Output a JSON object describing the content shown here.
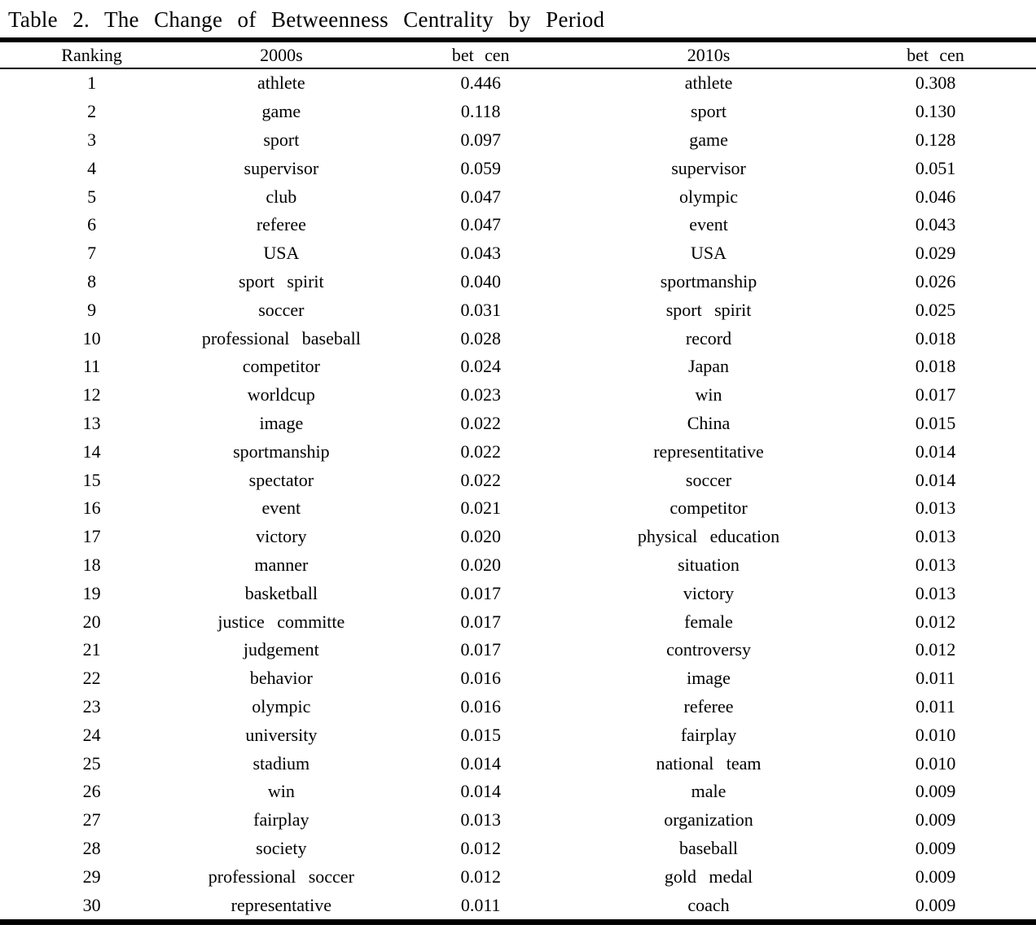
{
  "title": "Table 2. The Change of Betweenness Centrality by Period",
  "colors": {
    "text": "#000000",
    "background": "#ffffff",
    "rule": "#000000"
  },
  "table": {
    "headers": [
      "Ranking",
      "2000s",
      "bet cen",
      "2010s",
      "bet cen"
    ],
    "rows": [
      {
        "ranking": "1",
        "term_2000s": "athlete",
        "bet_cen_2000s": "0.446",
        "term_2010s": "athlete",
        "bet_cen_2010s": "0.308"
      },
      {
        "ranking": "2",
        "term_2000s": "game",
        "bet_cen_2000s": "0.118",
        "term_2010s": "sport",
        "bet_cen_2010s": "0.130"
      },
      {
        "ranking": "3",
        "term_2000s": "sport",
        "bet_cen_2000s": "0.097",
        "term_2010s": "game",
        "bet_cen_2010s": "0.128"
      },
      {
        "ranking": "4",
        "term_2000s": "supervisor",
        "bet_cen_2000s": "0.059",
        "term_2010s": "supervisor",
        "bet_cen_2010s": "0.051"
      },
      {
        "ranking": "5",
        "term_2000s": "club",
        "bet_cen_2000s": "0.047",
        "term_2010s": "olympic",
        "bet_cen_2010s": "0.046"
      },
      {
        "ranking": "6",
        "term_2000s": "referee",
        "bet_cen_2000s": "0.047",
        "term_2010s": "event",
        "bet_cen_2010s": "0.043"
      },
      {
        "ranking": "7",
        "term_2000s": "USA",
        "bet_cen_2000s": "0.043",
        "term_2010s": "USA",
        "bet_cen_2010s": "0.029"
      },
      {
        "ranking": "8",
        "term_2000s": "sport spirit",
        "bet_cen_2000s": "0.040",
        "term_2010s": "sportmanship",
        "bet_cen_2010s": "0.026"
      },
      {
        "ranking": "9",
        "term_2000s": "soccer",
        "bet_cen_2000s": "0.031",
        "term_2010s": "sport spirit",
        "bet_cen_2010s": "0.025"
      },
      {
        "ranking": "10",
        "term_2000s": "professional baseball",
        "bet_cen_2000s": "0.028",
        "term_2010s": "record",
        "bet_cen_2010s": "0.018"
      },
      {
        "ranking": "11",
        "term_2000s": "competitor",
        "bet_cen_2000s": "0.024",
        "term_2010s": "Japan",
        "bet_cen_2010s": "0.018"
      },
      {
        "ranking": "12",
        "term_2000s": "worldcup",
        "bet_cen_2000s": "0.023",
        "term_2010s": "win",
        "bet_cen_2010s": "0.017"
      },
      {
        "ranking": "13",
        "term_2000s": "image",
        "bet_cen_2000s": "0.022",
        "term_2010s": "China",
        "bet_cen_2010s": "0.015"
      },
      {
        "ranking": "14",
        "term_2000s": "sportmanship",
        "bet_cen_2000s": "0.022",
        "term_2010s": "representitative",
        "bet_cen_2010s": "0.014"
      },
      {
        "ranking": "15",
        "term_2000s": "spectator",
        "bet_cen_2000s": "0.022",
        "term_2010s": "soccer",
        "bet_cen_2010s": "0.014"
      },
      {
        "ranking": "16",
        "term_2000s": "event",
        "bet_cen_2000s": "0.021",
        "term_2010s": "competitor",
        "bet_cen_2010s": "0.013"
      },
      {
        "ranking": "17",
        "term_2000s": "victory",
        "bet_cen_2000s": "0.020",
        "term_2010s": "physical education",
        "bet_cen_2010s": "0.013"
      },
      {
        "ranking": "18",
        "term_2000s": "manner",
        "bet_cen_2000s": "0.020",
        "term_2010s": "situation",
        "bet_cen_2010s": "0.013"
      },
      {
        "ranking": "19",
        "term_2000s": "basketball",
        "bet_cen_2000s": "0.017",
        "term_2010s": "victory",
        "bet_cen_2010s": "0.013"
      },
      {
        "ranking": "20",
        "term_2000s": "justice committe",
        "bet_cen_2000s": "0.017",
        "term_2010s": "female",
        "bet_cen_2010s": "0.012"
      },
      {
        "ranking": "21",
        "term_2000s": "judgement",
        "bet_cen_2000s": "0.017",
        "term_2010s": "controversy",
        "bet_cen_2010s": "0.012"
      },
      {
        "ranking": "22",
        "term_2000s": "behavior",
        "bet_cen_2000s": "0.016",
        "term_2010s": "image",
        "bet_cen_2010s": "0.011"
      },
      {
        "ranking": "23",
        "term_2000s": "olympic",
        "bet_cen_2000s": "0.016",
        "term_2010s": "referee",
        "bet_cen_2010s": "0.011"
      },
      {
        "ranking": "24",
        "term_2000s": "university",
        "bet_cen_2000s": "0.015",
        "term_2010s": "fairplay",
        "bet_cen_2010s": "0.010"
      },
      {
        "ranking": "25",
        "term_2000s": "stadium",
        "bet_cen_2000s": "0.014",
        "term_2010s": "national team",
        "bet_cen_2010s": "0.010"
      },
      {
        "ranking": "26",
        "term_2000s": "win",
        "bet_cen_2000s": "0.014",
        "term_2010s": "male",
        "bet_cen_2010s": "0.009"
      },
      {
        "ranking": "27",
        "term_2000s": "fairplay",
        "bet_cen_2000s": "0.013",
        "term_2010s": "organization",
        "bet_cen_2010s": "0.009"
      },
      {
        "ranking": "28",
        "term_2000s": "society",
        "bet_cen_2000s": "0.012",
        "term_2010s": "baseball",
        "bet_cen_2010s": "0.009"
      },
      {
        "ranking": "29",
        "term_2000s": "professional soccer",
        "bet_cen_2000s": "0.012",
        "term_2010s": "gold medal",
        "bet_cen_2010s": "0.009"
      },
      {
        "ranking": "30",
        "term_2000s": "representative",
        "bet_cen_2000s": "0.011",
        "term_2010s": "coach",
        "bet_cen_2010s": "0.009"
      }
    ]
  }
}
